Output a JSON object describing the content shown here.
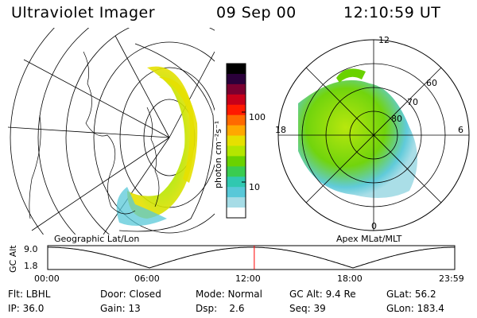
{
  "header": {
    "instrument": "Ultraviolet Imager",
    "date": "09 Sep 00",
    "time": "12:10:59 UT"
  },
  "colorbar": {
    "label": "photon cm⁻²s⁻¹",
    "ticks": [
      "100",
      "10"
    ]
  },
  "geo_panel": {
    "label": "Geographic Lat/Lon"
  },
  "polar_panel": {
    "label": "Apex MLat/MLT",
    "lat_labels": [
      "60",
      "70",
      "80"
    ],
    "mlt_labels": [
      "12",
      "18",
      "6",
      "0"
    ]
  },
  "altitude_plot": {
    "ylabel": "GC Alt",
    "yticks": [
      "9.0",
      "1.8"
    ],
    "xticks": [
      "00:00",
      "06:00",
      "12:00",
      "18:00",
      "23:59"
    ],
    "marker_time_hours": 12.18,
    "marker_color": "#ff0000"
  },
  "info_row1": {
    "filter": "Flt: LBHL",
    "door": "Door: Closed",
    "mode": "Mode: Normal",
    "gc_alt": "GC Alt: 9.4 Re",
    "glat": "GLat:  56.2"
  },
  "info_row2": {
    "ip": "IP: 36.0",
    "gain": "Gain: 13",
    "dsp": "Dsp:    2.6",
    "seq": "Seq: 39",
    "glon": "GLon: 183.4"
  },
  "colors": {
    "scale": [
      "#000000",
      "#2a003a",
      "#7a0030",
      "#c8001a",
      "#ff1a00",
      "#ff6a00",
      "#ffa800",
      "#e6e000",
      "#b4e600",
      "#6ad200",
      "#3acc50",
      "#30c8b0",
      "#58c8d8",
      "#a6dce6",
      "#ffffff"
    ]
  }
}
